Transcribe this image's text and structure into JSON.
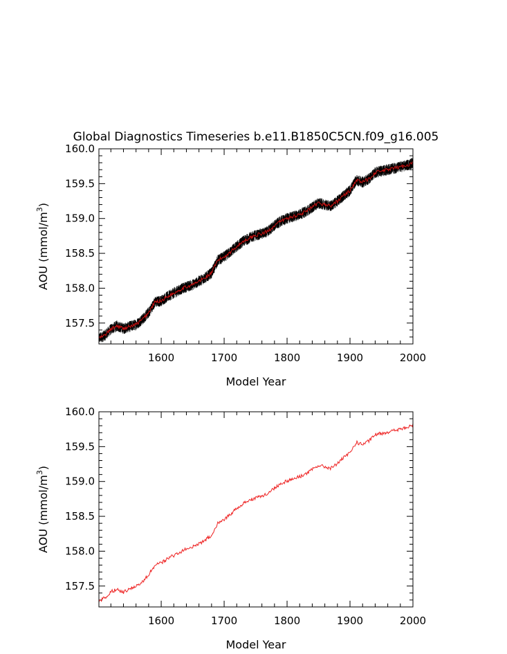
{
  "chart_data": [
    {
      "type": "line",
      "title": "Global Diagnostics Timeseries b.e11.B1850C5CN.f09_g16.005",
      "xlabel": "Model Year",
      "ylabel": "AOU (mmol/m³)",
      "xlim": [
        1501,
        2000
      ],
      "ylim": [
        157.2,
        160.0
      ],
      "xticks": [
        "1600",
        "1700",
        "1800",
        "1900",
        "2000"
      ],
      "yticks": [
        "157.5",
        "158.0",
        "158.5",
        "159.0",
        "159.5",
        "160.0"
      ],
      "x": [
        1500,
        1510,
        1520,
        1530,
        1540,
        1550,
        1560,
        1570,
        1580,
        1590,
        1600,
        1610,
        1620,
        1630,
        1640,
        1650,
        1660,
        1670,
        1680,
        1690,
        1700,
        1710,
        1720,
        1730,
        1740,
        1750,
        1760,
        1770,
        1780,
        1790,
        1800,
        1810,
        1820,
        1830,
        1840,
        1850,
        1860,
        1870,
        1880,
        1890,
        1900,
        1910,
        1920,
        1930,
        1940,
        1950,
        1960,
        1970,
        1980,
        1990,
        2000
      ],
      "series": [
        {
          "values": [
            157.28,
            157.32,
            157.41,
            157.46,
            157.42,
            157.45,
            157.48,
            157.55,
            157.65,
            157.8,
            157.82,
            157.88,
            157.93,
            157.98,
            158.02,
            158.05,
            158.1,
            158.15,
            158.22,
            158.4,
            158.45,
            158.52,
            158.6,
            158.67,
            158.72,
            158.76,
            158.78,
            158.82,
            158.9,
            158.96,
            159.0,
            159.03,
            159.06,
            159.1,
            159.16,
            159.22,
            159.2,
            159.18,
            159.25,
            159.33,
            159.4,
            159.55,
            159.52,
            159.57,
            159.66,
            159.68,
            159.7,
            159.72,
            159.74,
            159.76,
            159.8
          ],
          "color": "#cc1111",
          "noise_band_color": "#000000"
        }
      ]
    },
    {
      "type": "line",
      "title": "",
      "xlabel": "Model Year",
      "ylabel": "AOU (mmol/m³)",
      "xlim": [
        1501,
        2000
      ],
      "ylim": [
        157.2,
        160.0
      ],
      "xticks": [
        "1600",
        "1700",
        "1800",
        "1900",
        "2000"
      ],
      "yticks": [
        "157.5",
        "158.0",
        "158.5",
        "159.0",
        "159.5",
        "160.0"
      ],
      "x": [
        1500,
        1510,
        1520,
        1530,
        1540,
        1550,
        1560,
        1570,
        1580,
        1590,
        1600,
        1610,
        1620,
        1630,
        1640,
        1650,
        1660,
        1670,
        1680,
        1690,
        1700,
        1710,
        1720,
        1730,
        1740,
        1750,
        1760,
        1770,
        1780,
        1790,
        1800,
        1810,
        1820,
        1830,
        1840,
        1850,
        1860,
        1870,
        1880,
        1890,
        1900,
        1910,
        1920,
        1930,
        1940,
        1950,
        1960,
        1970,
        1980,
        1990,
        2000
      ],
      "series": [
        {
          "values": [
            157.27,
            157.33,
            157.42,
            157.45,
            157.41,
            157.46,
            157.5,
            157.56,
            157.66,
            157.8,
            157.83,
            157.89,
            157.94,
            157.99,
            158.03,
            158.06,
            158.11,
            158.16,
            158.23,
            158.41,
            158.46,
            158.53,
            158.61,
            158.68,
            158.73,
            158.77,
            158.79,
            158.83,
            158.91,
            158.97,
            159.01,
            159.04,
            159.07,
            159.11,
            159.17,
            159.23,
            159.21,
            159.19,
            159.26,
            159.34,
            159.41,
            159.56,
            159.53,
            159.58,
            159.67,
            159.69,
            159.71,
            159.73,
            159.75,
            159.77,
            159.81
          ],
          "color": "#ee2222"
        }
      ]
    }
  ]
}
